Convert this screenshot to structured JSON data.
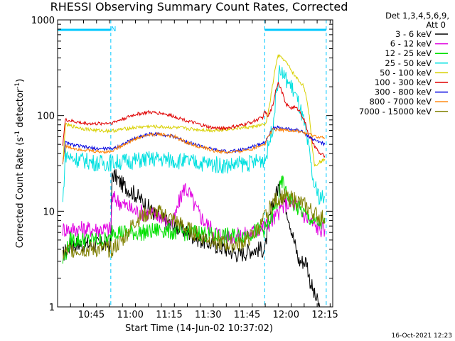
{
  "chart_data": {
    "type": "line",
    "title": "RHESSI Observing Summary Count Rates, Corrected",
    "xlabel": "Start Time (14-Jun-02 10:37:02)",
    "ylabel_main": "Corrected Count Rate (s",
    "ylabel_sup1": "-1",
    "ylabel_mid": " detector",
    "ylabel_sup2": "-1",
    "ylabel_end": ")",
    "yscale": "log",
    "ylim": [
      1,
      1000
    ],
    "xlim_min": [
      -5,
      101
    ],
    "y_ticks": [
      {
        "value": 1,
        "label": "1"
      },
      {
        "value": 10,
        "label": "10"
      },
      {
        "value": 100,
        "label": "100"
      },
      {
        "value": 1000,
        "label": "1000"
      }
    ],
    "x_ticks": [
      {
        "value": 8,
        "label": "10:45"
      },
      {
        "value": 23,
        "label": "11:00"
      },
      {
        "value": 38,
        "label": "11:15"
      },
      {
        "value": 53,
        "label": "11:30"
      },
      {
        "value": 68,
        "label": "11:45"
      },
      {
        "value": 83,
        "label": "12:00"
      },
      {
        "value": 98,
        "label": "12:15"
      }
    ],
    "legend_header": [
      "Det 1,3,4,5,6,9,",
      "Att 0"
    ],
    "annotation": "N",
    "night_intervals": [
      [
        -5,
        15.5
      ],
      [
        74.8,
        98.5
      ]
    ],
    "footer_date": "16-Oct-2021 12:23",
    "series": [
      {
        "name": "3 - 6 keV",
        "color": "#000000",
        "points": [
          [
            -3,
            3.5
          ],
          [
            0,
            4.5
          ],
          [
            10,
            4.5
          ],
          [
            14,
            4.5
          ],
          [
            15.5,
            4.5
          ],
          [
            16,
            25
          ],
          [
            20,
            19
          ],
          [
            25,
            15
          ],
          [
            30,
            11
          ],
          [
            33,
            9
          ],
          [
            36,
            8
          ],
          [
            40,
            7
          ],
          [
            45,
            6
          ],
          [
            50,
            5
          ],
          [
            55,
            4.5
          ],
          [
            60,
            4
          ],
          [
            65,
            3.5
          ],
          [
            70,
            4
          ],
          [
            74,
            4
          ],
          [
            75,
            4
          ],
          [
            76,
            7
          ],
          [
            78,
            12
          ],
          [
            80,
            18
          ],
          [
            82,
            14
          ],
          [
            84,
            9
          ],
          [
            86,
            5
          ],
          [
            88,
            3
          ],
          [
            91,
            3
          ],
          [
            92,
            2
          ],
          [
            94,
            1.3
          ],
          [
            96,
            1
          ]
        ]
      },
      {
        "name": "6 - 12 keV",
        "color": "#e000e0",
        "points": [
          [
            -3,
            6.5
          ],
          [
            0,
            6.5
          ],
          [
            10,
            6.5
          ],
          [
            15.5,
            6.5
          ],
          [
            16,
            14
          ],
          [
            20,
            12
          ],
          [
            25,
            10
          ],
          [
            30,
            9.5
          ],
          [
            35,
            9
          ],
          [
            38,
            7
          ],
          [
            40,
            8
          ],
          [
            42,
            13
          ],
          [
            44,
            18
          ],
          [
            46,
            15
          ],
          [
            48,
            11
          ],
          [
            50,
            9
          ],
          [
            52,
            7.5
          ],
          [
            56,
            6
          ],
          [
            60,
            5.5
          ],
          [
            65,
            5.5
          ],
          [
            70,
            6
          ],
          [
            75,
            7
          ],
          [
            78,
            8
          ],
          [
            81,
            10.5
          ],
          [
            83,
            12
          ],
          [
            86,
            12
          ],
          [
            88,
            11
          ],
          [
            90,
            9
          ],
          [
            92,
            8
          ],
          [
            94,
            7
          ],
          [
            96,
            6.5
          ],
          [
            98,
            6.5
          ]
        ]
      },
      {
        "name": "12 - 25 keV",
        "color": "#00e000",
        "points": [
          [
            -3,
            3
          ],
          [
            0,
            5
          ],
          [
            10,
            5
          ],
          [
            15.5,
            5
          ],
          [
            16,
            6.5
          ],
          [
            20,
            6
          ],
          [
            25,
            6
          ],
          [
            30,
            6
          ],
          [
            35,
            6.5
          ],
          [
            40,
            6
          ],
          [
            45,
            6
          ],
          [
            50,
            6
          ],
          [
            55,
            5.5
          ],
          [
            60,
            5.5
          ],
          [
            65,
            5.5
          ],
          [
            70,
            6
          ],
          [
            74,
            6.5
          ],
          [
            75,
            6.5
          ],
          [
            77,
            8
          ],
          [
            79,
            11
          ],
          [
            80,
            13
          ],
          [
            81,
            19
          ],
          [
            82,
            20
          ],
          [
            83,
            15
          ],
          [
            85,
            13
          ],
          [
            87,
            11
          ],
          [
            89,
            10
          ],
          [
            91,
            9
          ],
          [
            93,
            8
          ],
          [
            95,
            7.5
          ],
          [
            98,
            7.5
          ]
        ]
      },
      {
        "name": "25 - 50 keV",
        "color": "#00e0e0",
        "points": [
          [
            -3,
            12
          ],
          [
            -2,
            40
          ],
          [
            0,
            36
          ],
          [
            5,
            34
          ],
          [
            10,
            32
          ],
          [
            14,
            32
          ],
          [
            15.5,
            32
          ],
          [
            16,
            32
          ],
          [
            20,
            33
          ],
          [
            25,
            34
          ],
          [
            30,
            35
          ],
          [
            35,
            35
          ],
          [
            40,
            34
          ],
          [
            45,
            33
          ],
          [
            50,
            32
          ],
          [
            55,
            31
          ],
          [
            60,
            30
          ],
          [
            65,
            31
          ],
          [
            70,
            32
          ],
          [
            74,
            35
          ],
          [
            75,
            35
          ],
          [
            76,
            45
          ],
          [
            78,
            80
          ],
          [
            79,
            150
          ],
          [
            80,
            250
          ],
          [
            81,
            300
          ],
          [
            82,
            260
          ],
          [
            84,
            220
          ],
          [
            86,
            180
          ],
          [
            88,
            130
          ],
          [
            90,
            80
          ],
          [
            92,
            40
          ],
          [
            93,
            25
          ],
          [
            94,
            18
          ],
          [
            96,
            14
          ],
          [
            98,
            14
          ]
        ]
      },
      {
        "name": "50 - 100 keV",
        "color": "#d8d000",
        "points": [
          [
            -3,
            30
          ],
          [
            -2,
            80
          ],
          [
            0,
            78
          ],
          [
            5,
            73
          ],
          [
            10,
            70
          ],
          [
            15.5,
            69
          ],
          [
            16,
            69
          ],
          [
            20,
            72
          ],
          [
            25,
            75
          ],
          [
            30,
            77
          ],
          [
            35,
            76
          ],
          [
            40,
            75
          ],
          [
            45,
            73
          ],
          [
            50,
            71
          ],
          [
            55,
            70
          ],
          [
            60,
            72
          ],
          [
            65,
            74
          ],
          [
            70,
            76
          ],
          [
            74,
            80
          ],
          [
            75,
            80
          ],
          [
            76,
            100
          ],
          [
            78,
            220
          ],
          [
            79,
            330
          ],
          [
            80,
            420
          ],
          [
            82,
            390
          ],
          [
            84,
            330
          ],
          [
            86,
            270
          ],
          [
            88,
            230
          ],
          [
            90,
            200
          ],
          [
            92,
            100
          ],
          [
            93,
            50
          ],
          [
            94,
            30
          ],
          [
            96,
            33
          ],
          [
            98,
            35
          ]
        ]
      },
      {
        "name": "100 - 300 keV",
        "color": "#e00000",
        "points": [
          [
            -3,
            50
          ],
          [
            -2,
            90
          ],
          [
            0,
            88
          ],
          [
            5,
            83
          ],
          [
            10,
            82
          ],
          [
            15.5,
            84
          ],
          [
            16,
            84
          ],
          [
            20,
            92
          ],
          [
            25,
            103
          ],
          [
            30,
            108
          ],
          [
            35,
            106
          ],
          [
            40,
            98
          ],
          [
            45,
            88
          ],
          [
            50,
            80
          ],
          [
            55,
            74
          ],
          [
            60,
            74
          ],
          [
            65,
            78
          ],
          [
            70,
            86
          ],
          [
            74,
            96
          ],
          [
            75,
            112
          ],
          [
            76,
            95
          ],
          [
            78,
            130
          ],
          [
            79,
            185
          ],
          [
            80,
            220
          ],
          [
            81,
            195
          ],
          [
            83,
            130
          ],
          [
            85,
            120
          ],
          [
            86,
            123
          ],
          [
            88,
            115
          ],
          [
            90,
            90
          ],
          [
            92,
            60
          ],
          [
            94,
            48
          ],
          [
            96,
            40
          ],
          [
            98,
            38
          ]
        ]
      },
      {
        "name": "300 - 800 keV",
        "color": "#0000e0",
        "points": [
          [
            -3,
            32
          ],
          [
            -2,
            52
          ],
          [
            0,
            50
          ],
          [
            5,
            47
          ],
          [
            10,
            45
          ],
          [
            15.5,
            45
          ],
          [
            16,
            45
          ],
          [
            20,
            50
          ],
          [
            25,
            58
          ],
          [
            30,
            64
          ],
          [
            35,
            64
          ],
          [
            40,
            60
          ],
          [
            45,
            53
          ],
          [
            50,
            48
          ],
          [
            55,
            44
          ],
          [
            60,
            42
          ],
          [
            65,
            43
          ],
          [
            70,
            47
          ],
          [
            74,
            52
          ],
          [
            75,
            52
          ],
          [
            76,
            62
          ],
          [
            78,
            73
          ],
          [
            80,
            75
          ],
          [
            82,
            74
          ],
          [
            84,
            72
          ],
          [
            86,
            71
          ],
          [
            88,
            70
          ],
          [
            90,
            66
          ],
          [
            92,
            60
          ],
          [
            94,
            55
          ],
          [
            96,
            53
          ],
          [
            98,
            50
          ]
        ]
      },
      {
        "name": "800 - 7000 keV",
        "color": "#ff8000",
        "points": [
          [
            -3,
            32
          ],
          [
            -2,
            48
          ],
          [
            0,
            46
          ],
          [
            5,
            44
          ],
          [
            10,
            42
          ],
          [
            15.5,
            42
          ],
          [
            16,
            43
          ],
          [
            20,
            49
          ],
          [
            25,
            57
          ],
          [
            30,
            63
          ],
          [
            35,
            64
          ],
          [
            40,
            60
          ],
          [
            45,
            52
          ],
          [
            50,
            47
          ],
          [
            55,
            43
          ],
          [
            60,
            41
          ],
          [
            65,
            42
          ],
          [
            70,
            45
          ],
          [
            74,
            50
          ],
          [
            75,
            50
          ],
          [
            76,
            60
          ],
          [
            78,
            72
          ],
          [
            80,
            72
          ],
          [
            82,
            71
          ],
          [
            84,
            70
          ],
          [
            86,
            69
          ],
          [
            88,
            68
          ],
          [
            90,
            66
          ],
          [
            92,
            63
          ],
          [
            94,
            61
          ],
          [
            96,
            59
          ],
          [
            98,
            58
          ]
        ]
      },
      {
        "name": "7000 - 15000 keV",
        "color": "#808000",
        "points": [
          [
            -3,
            3.5
          ],
          [
            0,
            4
          ],
          [
            10,
            4
          ],
          [
            15.5,
            4
          ],
          [
            16,
            4
          ],
          [
            20,
            5
          ],
          [
            25,
            8
          ],
          [
            30,
            9.5
          ],
          [
            35,
            9.5
          ],
          [
            40,
            8
          ],
          [
            45,
            6.5
          ],
          [
            50,
            5.5
          ],
          [
            55,
            5
          ],
          [
            60,
            4.5
          ],
          [
            65,
            4.5
          ],
          [
            70,
            5.5
          ],
          [
            74,
            7.5
          ],
          [
            75,
            9
          ],
          [
            77,
            11
          ],
          [
            79,
            13
          ],
          [
            81,
            14
          ],
          [
            83,
            14
          ],
          [
            85,
            13.5
          ],
          [
            87,
            13
          ],
          [
            89,
            12
          ],
          [
            91,
            11
          ],
          [
            93,
            10
          ],
          [
            95,
            9
          ],
          [
            97,
            8.5
          ],
          [
            98,
            8.5
          ]
        ]
      }
    ]
  }
}
